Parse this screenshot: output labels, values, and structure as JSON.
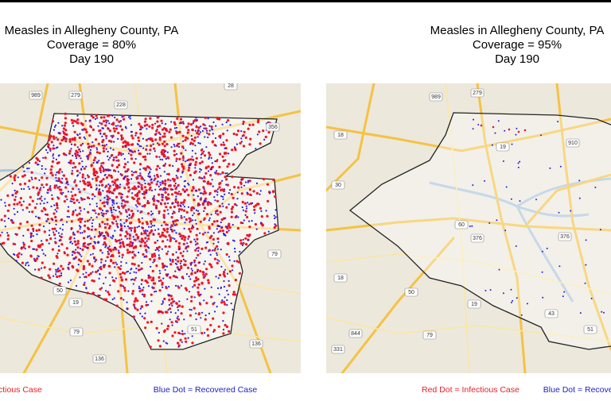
{
  "panels": [
    {
      "title": "Measles in Allegheny County, PA",
      "coverage": "Coverage = 80%",
      "day": "Day 190",
      "legend_infectious": "Red Dot = Infectious Case",
      "legend_recovered": "Blue Dot = Recovered Case",
      "road_labels": [
        "989",
        "228",
        "28",
        "356",
        "279",
        "19",
        "79",
        "51",
        "136",
        "136",
        "79",
        "50"
      ]
    },
    {
      "title": "Measles in Allegheny County, PA",
      "coverage": "Coverage = 95%",
      "day": "Day 190",
      "legend_infectious": "Red Dot = Infectious Case",
      "legend_recovered": "Blue Dot = Recovered Case",
      "road_labels": [
        "989",
        "279",
        "910",
        "19",
        "18",
        "30",
        "60",
        "376",
        "376",
        "50",
        "19",
        "18",
        "844",
        "331",
        "51",
        "43",
        "79"
      ]
    }
  ]
}
